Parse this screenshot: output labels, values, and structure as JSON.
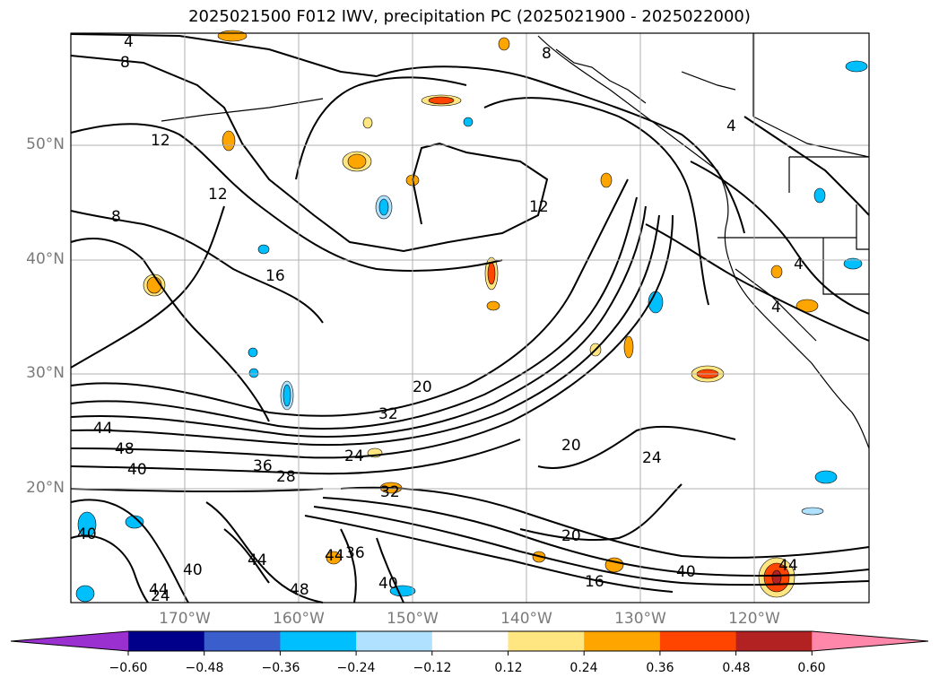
{
  "title": "2025021500 F012 IWV, precipitation PC (2025021900 - 2025022000)",
  "lat_labels": [
    "50°N",
    "40°N",
    "30°N",
    "20°N"
  ],
  "lon_labels": [
    "170°W",
    "160°W",
    "150°W",
    "140°W",
    "130°W",
    "120°W"
  ],
  "contour_labels": [
    "4",
    "8",
    "12",
    "12",
    "8",
    "12",
    "16",
    "20",
    "32",
    "44",
    "48",
    "40",
    "36",
    "28",
    "24",
    "32",
    "20",
    "24",
    "20",
    "40",
    "44",
    "36",
    "40",
    "44",
    "48",
    "44",
    "40",
    "24",
    "16",
    "40",
    "44",
    "4",
    "4",
    "8",
    "4"
  ],
  "colorbar": {
    "ticks": [
      "−0.60",
      "−0.48",
      "−0.36",
      "−0.24",
      "−0.12",
      "0.12",
      "0.24",
      "0.36",
      "0.48",
      "0.60"
    ],
    "colors": [
      "#9b30d0",
      "#00008b",
      "#3a5fcd",
      "#00bfff",
      "#b0e2ff",
      "#ffffff",
      "#ffe680",
      "#ffa500",
      "#ff4500",
      "#b22222",
      "#ff88aa"
    ]
  },
  "map_colors": {
    "land_line": "#000000",
    "grid": "#b0b0b0",
    "pos_light": "#ffe680",
    "pos_mid": "#ffa500",
    "pos_strong": "#ff4500",
    "neg_light": "#b0e2ff",
    "neg_mid": "#00bfff"
  }
}
